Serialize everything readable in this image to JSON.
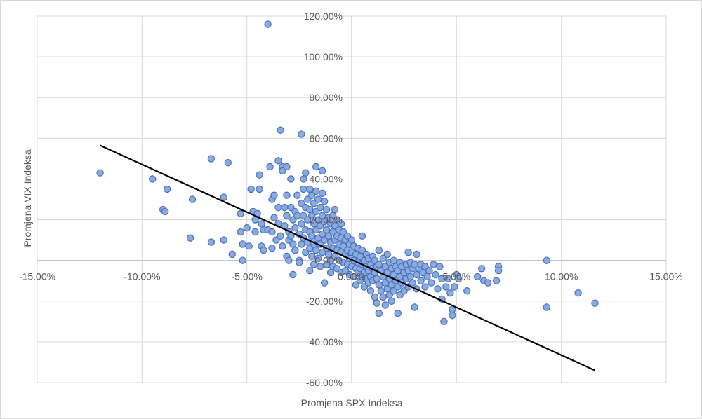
{
  "chart_data": {
    "type": "scatter",
    "title": "",
    "xlabel": "Promjena SPX Indeksa",
    "ylabel": "Promjena VIX Indeksa",
    "xlim": [
      -0.15,
      0.15
    ],
    "ylim": [
      -0.6,
      1.2
    ],
    "x_ticks": [
      -0.15,
      -0.1,
      -0.05,
      0.0,
      0.05,
      0.1,
      0.15
    ],
    "y_ticks": [
      -0.6,
      -0.4,
      -0.2,
      0.0,
      0.2,
      0.4,
      0.6,
      0.8,
      1.0,
      1.2
    ],
    "x_tick_labels": [
      "-15.00%",
      "-10.00%",
      "-5.00%",
      "0.00%",
      "5.00%",
      "10.00%",
      "15.00%"
    ],
    "y_tick_labels": [
      "-60.00%",
      "-40.00%",
      "-20.00%",
      "0.00%",
      "20.00%",
      "40.00%",
      "60.00%",
      "80.00%",
      "100.00%",
      "120.00%"
    ],
    "grid": true,
    "legend": "none",
    "marker_fill": "#8ea9db",
    "marker_stroke": "#4472c4",
    "trendline_color": "#000000",
    "trendline": {
      "x": [
        -0.12,
        0.116
      ],
      "y": [
        0.565,
        -0.54
      ]
    },
    "points": [
      [
        -0.12,
        0.43
      ],
      [
        -0.095,
        0.4
      ],
      [
        -0.088,
        0.35
      ],
      [
        -0.09,
        0.25
      ],
      [
        -0.089,
        0.24
      ],
      [
        -0.076,
        0.3
      ],
      [
        -0.077,
        0.11
      ],
      [
        -0.067,
        0.5
      ],
      [
        -0.067,
        0.09
      ],
      [
        -0.061,
        0.1
      ],
      [
        -0.059,
        0.48
      ],
      [
        -0.061,
        0.31
      ],
      [
        -0.057,
        0.03
      ],
      [
        -0.053,
        0.23
      ],
      [
        -0.053,
        0.14
      ],
      [
        -0.052,
        0.08
      ],
      [
        -0.052,
        0.0
      ],
      [
        -0.05,
        0.16
      ],
      [
        -0.049,
        0.07
      ],
      [
        -0.048,
        0.35
      ],
      [
        -0.047,
        0.24
      ],
      [
        -0.046,
        0.2
      ],
      [
        -0.046,
        0.14
      ],
      [
        -0.045,
        0.23
      ],
      [
        -0.044,
        0.42
      ],
      [
        -0.044,
        0.35
      ],
      [
        -0.043,
        0.18
      ],
      [
        -0.043,
        0.07
      ],
      [
        -0.042,
        0.15
      ],
      [
        -0.042,
        0.05
      ],
      [
        -0.04,
        1.16
      ],
      [
        -0.04,
        0.15
      ],
      [
        -0.039,
        0.46
      ],
      [
        -0.038,
        0.3
      ],
      [
        -0.038,
        0.14
      ],
      [
        -0.038,
        0.06
      ],
      [
        -0.037,
        0.32
      ],
      [
        -0.037,
        0.21
      ],
      [
        -0.036,
        0.1
      ],
      [
        -0.035,
        0.49
      ],
      [
        -0.035,
        0.26
      ],
      [
        -0.035,
        0.18
      ],
      [
        -0.034,
        0.64
      ],
      [
        -0.034,
        0.12
      ],
      [
        -0.033,
        0.46
      ],
      [
        -0.033,
        0.44
      ],
      [
        -0.033,
        0.07
      ],
      [
        -0.032,
        0.26
      ],
      [
        -0.032,
        0.17
      ],
      [
        -0.031,
        0.46
      ],
      [
        -0.031,
        0.32
      ],
      [
        -0.031,
        0.22
      ],
      [
        -0.031,
        0.02
      ],
      [
        -0.03,
        0.14
      ],
      [
        -0.03,
        0.1
      ],
      [
        -0.03,
        0.0
      ],
      [
        -0.029,
        0.4
      ],
      [
        -0.029,
        0.26
      ],
      [
        -0.029,
        0.12
      ],
      [
        -0.028,
        0.2
      ],
      [
        -0.028,
        0.08
      ],
      [
        -0.028,
        -0.07
      ],
      [
        -0.027,
        0.24
      ],
      [
        -0.027,
        0.16
      ],
      [
        -0.027,
        0.05
      ],
      [
        -0.026,
        0.32
      ],
      [
        -0.026,
        0.22
      ],
      [
        -0.025,
        0.13
      ],
      [
        -0.025,
        0.0
      ],
      [
        -0.025,
        -0.01
      ],
      [
        -0.024,
        0.62
      ],
      [
        -0.024,
        0.28
      ],
      [
        -0.024,
        0.18
      ],
      [
        -0.024,
        0.08
      ],
      [
        -0.023,
        0.4
      ],
      [
        -0.023,
        0.35
      ],
      [
        -0.023,
        0.22
      ],
      [
        -0.023,
        0.11
      ],
      [
        -0.022,
        0.43
      ],
      [
        -0.022,
        0.26
      ],
      [
        -0.022,
        0.15
      ],
      [
        -0.022,
        0.04
      ],
      [
        -0.021,
        0.3
      ],
      [
        -0.021,
        0.2
      ],
      [
        -0.021,
        0.09
      ],
      [
        -0.02,
        0.35
      ],
      [
        -0.02,
        0.25
      ],
      [
        -0.02,
        0.14
      ],
      [
        -0.02,
        0.06
      ],
      [
        -0.02,
        -0.05
      ],
      [
        -0.019,
        0.32
      ],
      [
        -0.019,
        0.22
      ],
      [
        -0.019,
        0.12
      ],
      [
        -0.019,
        0.02
      ],
      [
        -0.018,
        0.28
      ],
      [
        -0.018,
        0.18
      ],
      [
        -0.018,
        0.08
      ],
      [
        -0.018,
        -0.02
      ],
      [
        -0.017,
        0.46
      ],
      [
        -0.017,
        0.34
      ],
      [
        -0.017,
        0.24
      ],
      [
        -0.017,
        0.15
      ],
      [
        -0.017,
        0.05
      ],
      [
        -0.016,
        0.3
      ],
      [
        -0.016,
        0.2
      ],
      [
        -0.016,
        0.11
      ],
      [
        -0.016,
        0.01
      ],
      [
        -0.015,
        0.26
      ],
      [
        -0.015,
        0.17
      ],
      [
        -0.015,
        0.08
      ],
      [
        -0.015,
        -0.03
      ],
      [
        -0.014,
        0.44
      ],
      [
        -0.014,
        0.33
      ],
      [
        -0.014,
        0.22
      ],
      [
        -0.014,
        0.13
      ],
      [
        -0.014,
        0.04
      ],
      [
        -0.013,
        0.29
      ],
      [
        -0.013,
        0.19
      ],
      [
        -0.013,
        0.1
      ],
      [
        -0.013,
        -0.11
      ],
      [
        -0.012,
        0.25
      ],
      [
        -0.012,
        0.15
      ],
      [
        -0.012,
        0.06
      ],
      [
        -0.012,
        -0.02
      ],
      [
        -0.011,
        0.21
      ],
      [
        -0.011,
        0.12
      ],
      [
        -0.011,
        0.03
      ],
      [
        -0.01,
        0.18
      ],
      [
        -0.01,
        0.09
      ],
      [
        -0.01,
        0.0
      ],
      [
        -0.01,
        -0.06
      ],
      [
        -0.009,
        0.22
      ],
      [
        -0.009,
        0.14
      ],
      [
        -0.009,
        0.06
      ],
      [
        -0.009,
        -0.03
      ],
      [
        -0.008,
        0.25
      ],
      [
        -0.008,
        0.17
      ],
      [
        -0.008,
        0.1
      ],
      [
        -0.008,
        0.02
      ],
      [
        -0.007,
        0.2
      ],
      [
        -0.007,
        0.12
      ],
      [
        -0.007,
        0.05
      ],
      [
        -0.007,
        -0.04
      ],
      [
        -0.006,
        0.15
      ],
      [
        -0.006,
        0.08
      ],
      [
        -0.006,
        0.0
      ],
      [
        -0.005,
        0.18
      ],
      [
        -0.005,
        0.11
      ],
      [
        -0.005,
        0.04
      ],
      [
        -0.005,
        -0.06
      ],
      [
        -0.004,
        0.14
      ],
      [
        -0.004,
        0.07
      ],
      [
        -0.004,
        -0.01
      ],
      [
        -0.003,
        0.1
      ],
      [
        -0.003,
        0.03
      ],
      [
        -0.003,
        -0.05
      ],
      [
        -0.002,
        0.12
      ],
      [
        -0.002,
        0.05
      ],
      [
        -0.002,
        -0.02
      ],
      [
        -0.001,
        0.08
      ],
      [
        -0.001,
        0.01
      ],
      [
        -0.001,
        -0.07
      ],
      [
        0.0,
        0.1
      ],
      [
        0.0,
        0.04
      ],
      [
        0.0,
        -0.03
      ],
      [
        0.001,
        0.07
      ],
      [
        0.001,
        0.0
      ],
      [
        0.001,
        -0.08
      ],
      [
        0.002,
        0.03
      ],
      [
        0.002,
        -0.04
      ],
      [
        0.002,
        -0.12
      ],
      [
        0.003,
        0.06
      ],
      [
        0.003,
        -0.01
      ],
      [
        0.003,
        -0.06
      ],
      [
        0.004,
        0.02
      ],
      [
        0.004,
        -0.04
      ],
      [
        0.004,
        -0.1
      ],
      [
        0.005,
        0.05
      ],
      [
        0.005,
        -0.02
      ],
      [
        0.005,
        -0.08
      ],
      [
        0.005,
        0.12
      ],
      [
        0.006,
        0.0
      ],
      [
        0.006,
        -0.06
      ],
      [
        0.006,
        -0.13
      ],
      [
        0.007,
        0.03
      ],
      [
        0.007,
        -0.03
      ],
      [
        0.007,
        -0.09
      ],
      [
        0.008,
        0.01
      ],
      [
        0.008,
        -0.05
      ],
      [
        0.008,
        -0.11
      ],
      [
        0.009,
        -0.02
      ],
      [
        0.009,
        -0.08
      ],
      [
        0.009,
        -0.15
      ],
      [
        0.01,
        0.02
      ],
      [
        0.01,
        -0.04
      ],
      [
        0.01,
        -0.1
      ],
      [
        0.011,
        0.0
      ],
      [
        0.011,
        -0.06
      ],
      [
        0.011,
        -0.18
      ],
      [
        0.012,
        -0.03
      ],
      [
        0.012,
        -0.09
      ],
      [
        0.012,
        -0.21
      ],
      [
        0.013,
        0.05
      ],
      [
        0.013,
        -0.02
      ],
      [
        0.013,
        -0.12
      ],
      [
        0.013,
        -0.26
      ],
      [
        0.014,
        -0.05
      ],
      [
        0.014,
        -0.15
      ],
      [
        0.015,
        0.01
      ],
      [
        0.015,
        -0.08
      ],
      [
        0.015,
        -0.18
      ],
      [
        0.016,
        -0.03
      ],
      [
        0.016,
        -0.11
      ],
      [
        0.016,
        -0.22
      ],
      [
        0.017,
        0.03
      ],
      [
        0.017,
        -0.06
      ],
      [
        0.017,
        -0.14
      ],
      [
        0.018,
        -0.01
      ],
      [
        0.018,
        -0.09
      ],
      [
        0.018,
        -0.17
      ],
      [
        0.019,
        -0.04
      ],
      [
        0.019,
        -0.12
      ],
      [
        0.019,
        -0.2
      ],
      [
        0.02,
        0.0
      ],
      [
        0.02,
        -0.07
      ],
      [
        0.02,
        -0.15
      ],
      [
        0.021,
        -0.03
      ],
      [
        0.021,
        -0.1
      ],
      [
        0.022,
        -0.05
      ],
      [
        0.022,
        -0.13
      ],
      [
        0.022,
        -0.26
      ],
      [
        0.023,
        -0.01
      ],
      [
        0.023,
        -0.08
      ],
      [
        0.023,
        -0.17
      ],
      [
        0.024,
        -0.03
      ],
      [
        0.024,
        -0.11
      ],
      [
        0.025,
        -0.06
      ],
      [
        0.025,
        -0.15
      ],
      [
        0.026,
        -0.02
      ],
      [
        0.026,
        -0.09
      ],
      [
        0.027,
        0.04
      ],
      [
        0.027,
        -0.05
      ],
      [
        0.027,
        -0.13
      ],
      [
        0.028,
        -0.01
      ],
      [
        0.028,
        -0.08
      ],
      [
        0.029,
        -0.04
      ],
      [
        0.029,
        -0.11
      ],
      [
        0.03,
        -0.23
      ],
      [
        0.03,
        -0.02
      ],
      [
        0.031,
        0.03
      ],
      [
        0.031,
        -0.07
      ],
      [
        0.031,
        -0.14
      ],
      [
        0.032,
        -0.04
      ],
      [
        0.033,
        -0.1
      ],
      [
        0.033,
        -0.02
      ],
      [
        0.034,
        -0.06
      ],
      [
        0.035,
        -0.13
      ],
      [
        0.035,
        -0.03
      ],
      [
        0.036,
        -0.08
      ],
      [
        0.037,
        -0.05
      ],
      [
        0.038,
        -0.11
      ],
      [
        0.039,
        -0.02
      ],
      [
        0.04,
        -0.07
      ],
      [
        0.041,
        -0.14
      ],
      [
        0.042,
        -0.03
      ],
      [
        0.043,
        -0.09
      ],
      [
        0.043,
        -0.19
      ],
      [
        0.044,
        -0.3
      ],
      [
        0.045,
        -0.13
      ],
      [
        0.046,
        -0.09
      ],
      [
        0.047,
        -0.16
      ],
      [
        0.048,
        -0.24
      ],
      [
        0.048,
        -0.27
      ],
      [
        0.049,
        -0.13
      ],
      [
        0.05,
        -0.07
      ],
      [
        0.051,
        -0.09
      ],
      [
        0.055,
        -0.15
      ],
      [
        0.06,
        -0.08
      ],
      [
        0.062,
        -0.04
      ],
      [
        0.063,
        -0.1
      ],
      [
        0.065,
        -0.11
      ],
      [
        0.069,
        -0.1
      ],
      [
        0.07,
        -0.03
      ],
      [
        0.07,
        -0.05
      ],
      [
        0.093,
        0.0
      ],
      [
        0.093,
        -0.23
      ],
      [
        0.108,
        -0.16
      ],
      [
        0.116,
        -0.21
      ]
    ]
  }
}
